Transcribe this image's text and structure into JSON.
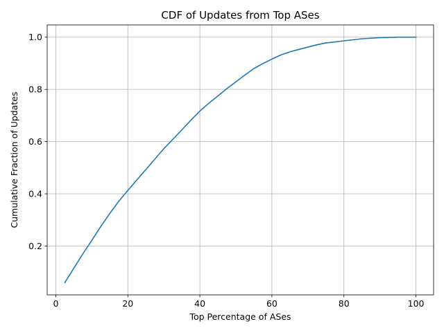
{
  "chart_data": {
    "type": "line",
    "title": "CDF of Updates from Top ASes",
    "xlabel": "Top Percentage of ASes",
    "ylabel": "Cumulative Fraction of Updates",
    "xlim": [
      -2.4,
      104.9
    ],
    "ylim": [
      0.013,
      1.047
    ],
    "xticks": [
      0,
      20,
      40,
      60,
      80,
      100
    ],
    "yticks": [
      0.2,
      0.4,
      0.6,
      0.8,
      1.0
    ],
    "xtick_labels": [
      "0",
      "20",
      "40",
      "60",
      "80",
      "100"
    ],
    "ytick_labels": [
      "0.2",
      "0.4",
      "0.6",
      "0.8",
      "1.0"
    ],
    "grid": true,
    "legend": "none",
    "series": [
      {
        "color": "#1f77b4",
        "x": [
          2.5,
          5,
          7.5,
          10,
          12.5,
          15,
          17.5,
          20,
          22.5,
          25,
          27.5,
          30,
          32.5,
          35,
          37.5,
          40,
          42.5,
          45,
          47.5,
          50,
          52.5,
          55,
          57.5,
          60,
          62.5,
          65,
          67.5,
          70,
          72.5,
          75,
          77.5,
          80,
          82.5,
          85,
          87.5,
          90,
          92.5,
          95,
          97.5,
          100
        ],
        "y": [
          0.06,
          0.115,
          0.17,
          0.222,
          0.275,
          0.325,
          0.372,
          0.413,
          0.453,
          0.493,
          0.533,
          0.573,
          0.609,
          0.645,
          0.682,
          0.717,
          0.747,
          0.775,
          0.803,
          0.829,
          0.855,
          0.88,
          0.899,
          0.916,
          0.932,
          0.944,
          0.953,
          0.962,
          0.971,
          0.978,
          0.982,
          0.986,
          0.99,
          0.994,
          0.996,
          0.998,
          0.999,
          1.0,
          1.0,
          1.0
        ]
      }
    ]
  }
}
